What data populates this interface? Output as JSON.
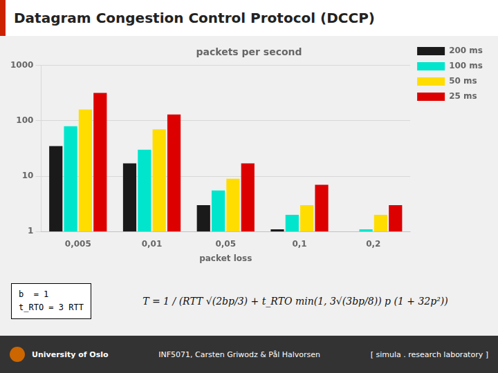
{
  "chart_data": {
    "type": "bar",
    "title": "Datagram Congestion Control Protocol (DCCP)",
    "subtitle": "packets per second",
    "x_label": "packet loss",
    "categories": [
      "0,005",
      "0,01",
      "0,05",
      "0,1",
      "0,2"
    ],
    "series": [
      {
        "name": "200 ms",
        "color": "#1a1a1a",
        "values": [
          35,
          17,
          3.0,
          1.1,
          1.0
        ]
      },
      {
        "name": "100 ms",
        "color": "#00e5cc",
        "values": [
          80,
          30,
          5.5,
          2.0,
          1.1
        ]
      },
      {
        "name": "50 ms",
        "color": "#ffdd00",
        "values": [
          160,
          70,
          9.0,
          3.0,
          2.0
        ]
      },
      {
        "name": "25 ms",
        "color": "#dd0000",
        "values": [
          320,
          130,
          17,
          7.0,
          3.0
        ]
      }
    ],
    "log": "y",
    "ylim": [
      1,
      1000
    ],
    "yticks": [
      1,
      10,
      100,
      1000
    ],
    "grid": true,
    "legend": "upper right",
    "annotations": [
      "b  = 1",
      "t_RTO = 3 RTT",
      "T = 1 / (RTT √(2bp/3) + t_RTO min(1, 3√(3bp/8)) p (1 + 32p²))",
      "University of Oslo",
      "INF5071, Carsten Griwodz & Pål Halvorsen",
      "[ simula . research laboratory ]"
    ]
  }
}
